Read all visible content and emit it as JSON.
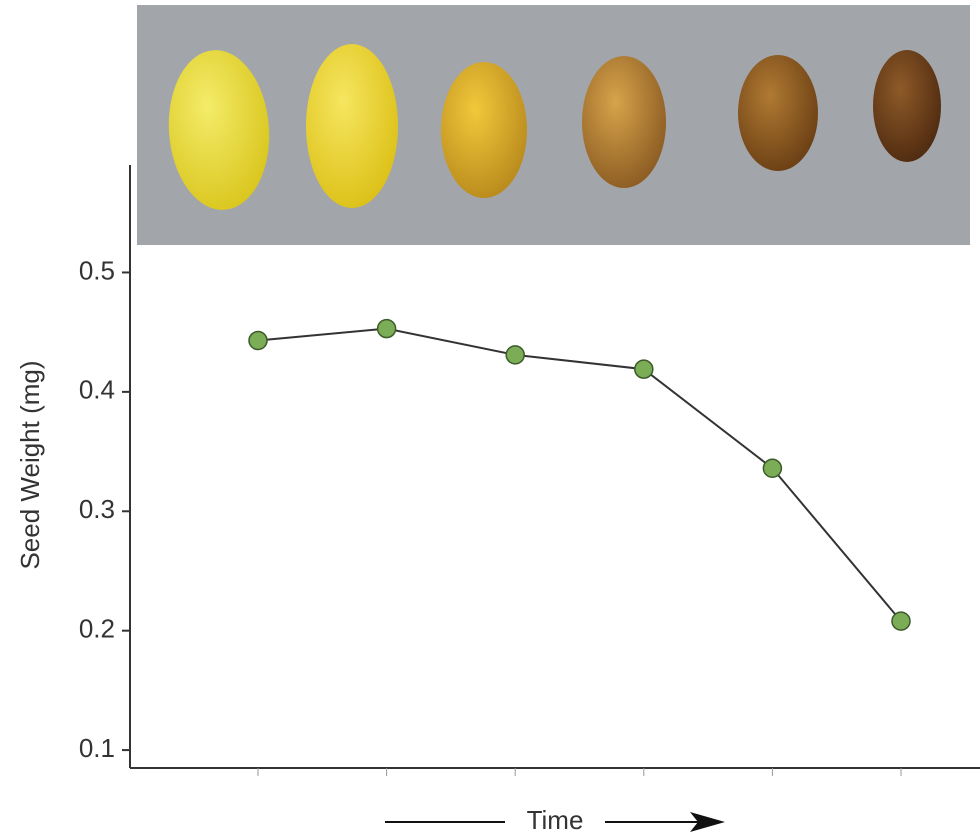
{
  "chart_data": {
    "type": "line",
    "x_label": "Time",
    "y_label": "Seed Weight (mg)",
    "categories": [
      null,
      null,
      null,
      null,
      null,
      null
    ],
    "series": [
      {
        "color": "#7aad55",
        "values": [
          0.443,
          0.453,
          0.431,
          0.419,
          0.336,
          0.208
        ]
      }
    ],
    "ylim": [
      0.085,
      0.59
    ],
    "yticks": [
      0.1,
      0.2,
      0.3,
      0.4,
      0.5
    ]
  }
}
